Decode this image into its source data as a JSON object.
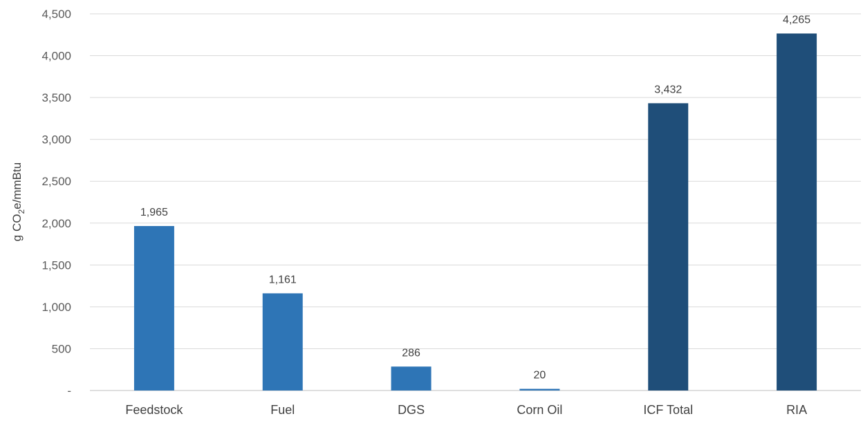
{
  "chart_data": {
    "type": "bar",
    "categories": [
      "Feedstock",
      "Fuel",
      "DGS",
      "Corn Oil",
      "ICF Total",
      "RIA"
    ],
    "values": [
      1965,
      1161,
      286,
      20,
      3432,
      4265
    ],
    "data_labels": [
      "1,965",
      "1,161",
      "286",
      "20",
      "3,432",
      "4,265"
    ],
    "bar_colors": [
      "#2e75b6",
      "#2e75b6",
      "#2e75b6",
      "#2e75b6",
      "#1f4e79",
      "#1f4e79"
    ],
    "title": "",
    "xlabel": "",
    "ylabel": {
      "prefix": "g CO",
      "subscript": "2",
      "suffix": "e/mmBtu"
    },
    "ylim": [
      0,
      4500
    ],
    "yticks": [
      0,
      500,
      1000,
      1500,
      2000,
      2500,
      3000,
      3500,
      4000,
      4500
    ],
    "ytick_labels": [
      "-",
      "500",
      "1,000",
      "1,500",
      "2,000",
      "2,500",
      "3,000",
      "3,500",
      "4,000",
      "4,500"
    ],
    "grid": true,
    "legend": "none"
  }
}
